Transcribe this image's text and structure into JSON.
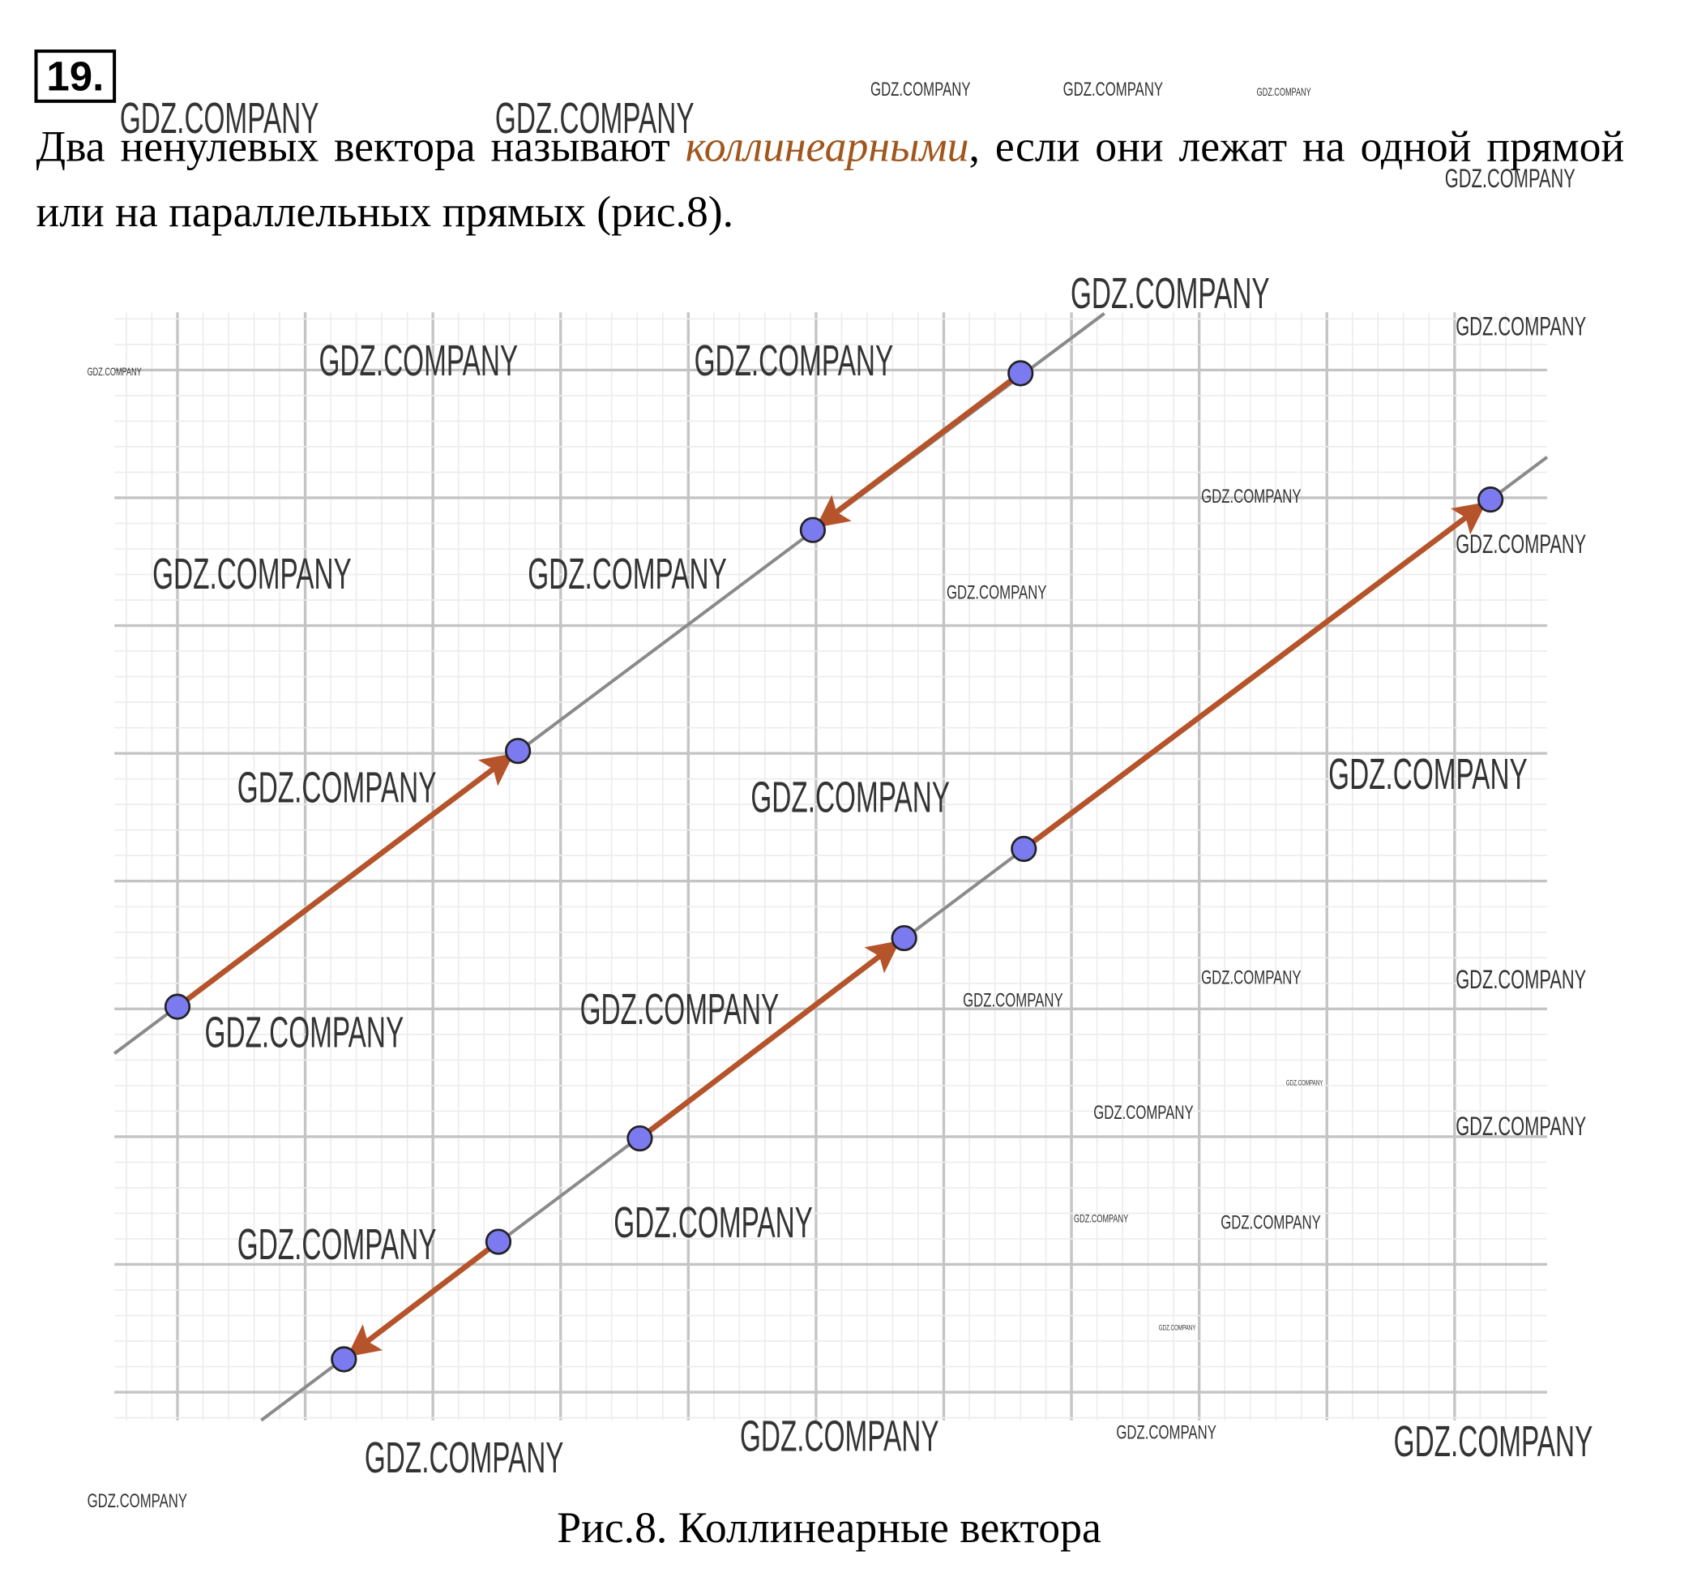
{
  "problem_number": "19.",
  "paragraph": {
    "text_before": "Два ненулевых вектора называют ",
    "term": "коллинеарными",
    "text_after": ", если они лежат на одной прямой или на параллельных прямых (рис.8)."
  },
  "caption": "Рис.8. Коллинеарные вектора",
  "watermark": "GDZ.COMPANY"
}
